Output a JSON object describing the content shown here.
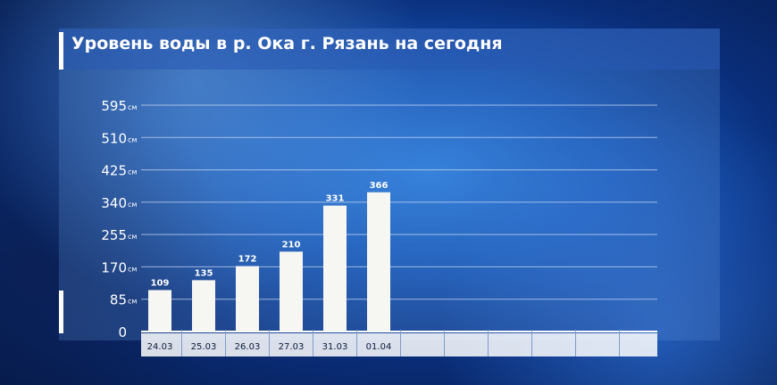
{
  "title": "Уровень воды в р. Ока г. Рязань на сегодня",
  "chart_data": {
    "type": "bar",
    "title": "Уровень воды в р. Ока г. Рязань на сегодня",
    "categories": [
      "24.03",
      "25.03",
      "26.03",
      "27.03",
      "31.03",
      "01.04"
    ],
    "values": [
      109,
      135,
      172,
      210,
      331,
      366
    ],
    "data_labels": [
      "109",
      "135",
      "172",
      "210",
      "331",
      "366"
    ],
    "y_ticks": [
      0,
      85,
      170,
      255,
      340,
      425,
      510,
      595
    ],
    "y_tick_labels": [
      "0",
      "85",
      "170",
      "255",
      "340",
      "425",
      "510",
      "595"
    ],
    "y_unit": "см",
    "ylim": [
      0,
      595
    ],
    "empty_slots": 6,
    "grid": true,
    "colors": {
      "bar": "#f6f6f2",
      "grid": "#c8d8f0",
      "axis": "#ffffff"
    }
  }
}
